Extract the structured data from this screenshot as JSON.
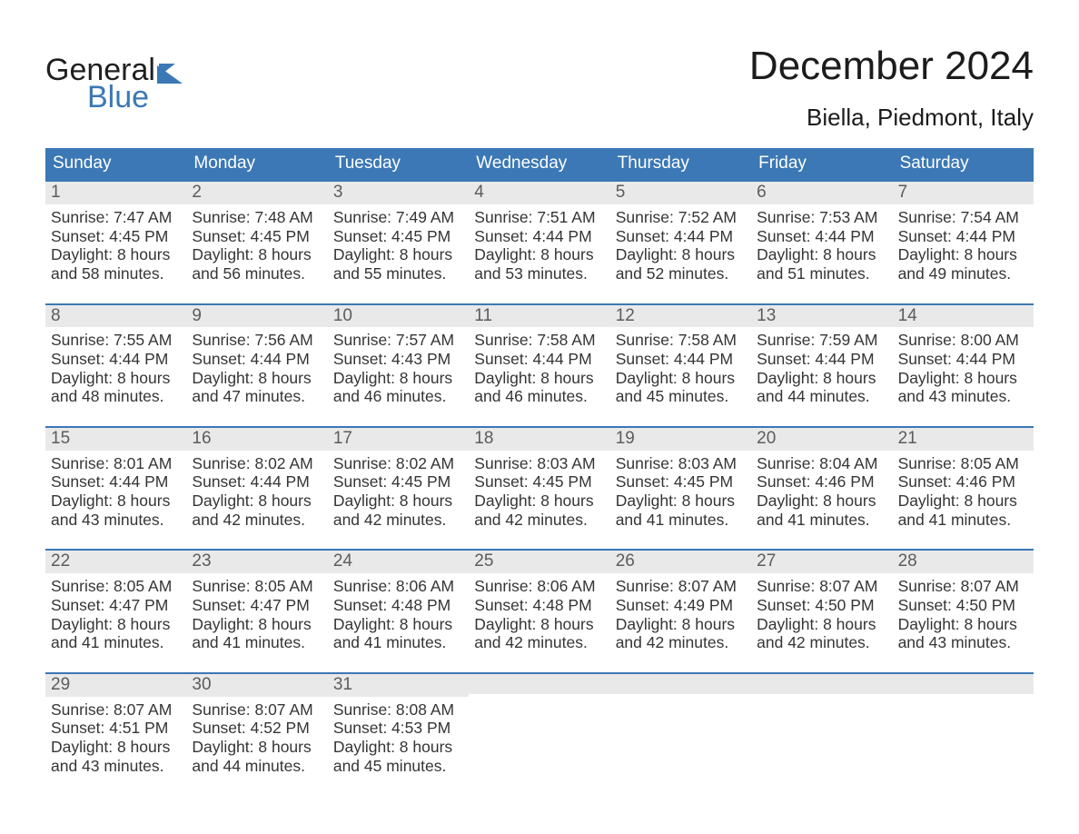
{
  "logo": {
    "word1": "General",
    "word2": "Blue"
  },
  "title": "December 2024",
  "subtitle": "Biella, Piedmont, Italy",
  "weekday_labels": [
    "Sunday",
    "Monday",
    "Tuesday",
    "Wednesday",
    "Thursday",
    "Friday",
    "Saturday"
  ],
  "colors": {
    "header_blue": "#3b78b5",
    "daynum_bg": "#e9e9e9",
    "text": "#2b2b2b",
    "background": "#ffffff"
  },
  "fonts": {
    "title_pt": 44,
    "subtitle_pt": 26,
    "weekday_pt": 19,
    "daynum_pt": 19,
    "body_pt": 17.5
  },
  "weeks": [
    [
      {
        "n": "1",
        "sunrise": "7:47 AM",
        "sunset": "4:45 PM",
        "dl1": "8 hours",
        "dl2": "and 58 minutes."
      },
      {
        "n": "2",
        "sunrise": "7:48 AM",
        "sunset": "4:45 PM",
        "dl1": "8 hours",
        "dl2": "and 56 minutes."
      },
      {
        "n": "3",
        "sunrise": "7:49 AM",
        "sunset": "4:45 PM",
        "dl1": "8 hours",
        "dl2": "and 55 minutes."
      },
      {
        "n": "4",
        "sunrise": "7:51 AM",
        "sunset": "4:44 PM",
        "dl1": "8 hours",
        "dl2": "and 53 minutes."
      },
      {
        "n": "5",
        "sunrise": "7:52 AM",
        "sunset": "4:44 PM",
        "dl1": "8 hours",
        "dl2": "and 52 minutes."
      },
      {
        "n": "6",
        "sunrise": "7:53 AM",
        "sunset": "4:44 PM",
        "dl1": "8 hours",
        "dl2": "and 51 minutes."
      },
      {
        "n": "7",
        "sunrise": "7:54 AM",
        "sunset": "4:44 PM",
        "dl1": "8 hours",
        "dl2": "and 49 minutes."
      }
    ],
    [
      {
        "n": "8",
        "sunrise": "7:55 AM",
        "sunset": "4:44 PM",
        "dl1": "8 hours",
        "dl2": "and 48 minutes."
      },
      {
        "n": "9",
        "sunrise": "7:56 AM",
        "sunset": "4:44 PM",
        "dl1": "8 hours",
        "dl2": "and 47 minutes."
      },
      {
        "n": "10",
        "sunrise": "7:57 AM",
        "sunset": "4:43 PM",
        "dl1": "8 hours",
        "dl2": "and 46 minutes."
      },
      {
        "n": "11",
        "sunrise": "7:58 AM",
        "sunset": "4:44 PM",
        "dl1": "8 hours",
        "dl2": "and 46 minutes."
      },
      {
        "n": "12",
        "sunrise": "7:58 AM",
        "sunset": "4:44 PM",
        "dl1": "8 hours",
        "dl2": "and 45 minutes."
      },
      {
        "n": "13",
        "sunrise": "7:59 AM",
        "sunset": "4:44 PM",
        "dl1": "8 hours",
        "dl2": "and 44 minutes."
      },
      {
        "n": "14",
        "sunrise": "8:00 AM",
        "sunset": "4:44 PM",
        "dl1": "8 hours",
        "dl2": "and 43 minutes."
      }
    ],
    [
      {
        "n": "15",
        "sunrise": "8:01 AM",
        "sunset": "4:44 PM",
        "dl1": "8 hours",
        "dl2": "and 43 minutes."
      },
      {
        "n": "16",
        "sunrise": "8:02 AM",
        "sunset": "4:44 PM",
        "dl1": "8 hours",
        "dl2": "and 42 minutes."
      },
      {
        "n": "17",
        "sunrise": "8:02 AM",
        "sunset": "4:45 PM",
        "dl1": "8 hours",
        "dl2": "and 42 minutes."
      },
      {
        "n": "18",
        "sunrise": "8:03 AM",
        "sunset": "4:45 PM",
        "dl1": "8 hours",
        "dl2": "and 42 minutes."
      },
      {
        "n": "19",
        "sunrise": "8:03 AM",
        "sunset": "4:45 PM",
        "dl1": "8 hours",
        "dl2": "and 41 minutes."
      },
      {
        "n": "20",
        "sunrise": "8:04 AM",
        "sunset": "4:46 PM",
        "dl1": "8 hours",
        "dl2": "and 41 minutes."
      },
      {
        "n": "21",
        "sunrise": "8:05 AM",
        "sunset": "4:46 PM",
        "dl1": "8 hours",
        "dl2": "and 41 minutes."
      }
    ],
    [
      {
        "n": "22",
        "sunrise": "8:05 AM",
        "sunset": "4:47 PM",
        "dl1": "8 hours",
        "dl2": "and 41 minutes."
      },
      {
        "n": "23",
        "sunrise": "8:05 AM",
        "sunset": "4:47 PM",
        "dl1": "8 hours",
        "dl2": "and 41 minutes."
      },
      {
        "n": "24",
        "sunrise": "8:06 AM",
        "sunset": "4:48 PM",
        "dl1": "8 hours",
        "dl2": "and 41 minutes."
      },
      {
        "n": "25",
        "sunrise": "8:06 AM",
        "sunset": "4:48 PM",
        "dl1": "8 hours",
        "dl2": "and 42 minutes."
      },
      {
        "n": "26",
        "sunrise": "8:07 AM",
        "sunset": "4:49 PM",
        "dl1": "8 hours",
        "dl2": "and 42 minutes."
      },
      {
        "n": "27",
        "sunrise": "8:07 AM",
        "sunset": "4:50 PM",
        "dl1": "8 hours",
        "dl2": "and 42 minutes."
      },
      {
        "n": "28",
        "sunrise": "8:07 AM",
        "sunset": "4:50 PM",
        "dl1": "8 hours",
        "dl2": "and 43 minutes."
      }
    ],
    [
      {
        "n": "29",
        "sunrise": "8:07 AM",
        "sunset": "4:51 PM",
        "dl1": "8 hours",
        "dl2": "and 43 minutes."
      },
      {
        "n": "30",
        "sunrise": "8:07 AM",
        "sunset": "4:52 PM",
        "dl1": "8 hours",
        "dl2": "and 44 minutes."
      },
      {
        "n": "31",
        "sunrise": "8:08 AM",
        "sunset": "4:53 PM",
        "dl1": "8 hours",
        "dl2": "and 45 minutes."
      },
      {
        "empty": true
      },
      {
        "empty": true
      },
      {
        "empty": true
      },
      {
        "empty": true
      }
    ]
  ],
  "labels": {
    "sunrise": "Sunrise:",
    "sunset": "Sunset:",
    "daylight": "Daylight:"
  }
}
